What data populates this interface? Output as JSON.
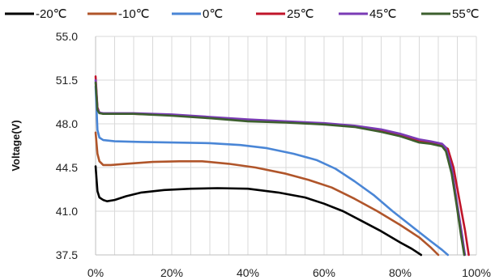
{
  "chart_data": {
    "type": "line",
    "title": "",
    "xlabel": "",
    "ylabel": "Voltage(V)",
    "xlim": [
      0,
      100
    ],
    "ylim": [
      37.5,
      55.0
    ],
    "x_ticks": [
      "0%",
      "20%",
      "40%",
      "60%",
      "80%",
      "100%"
    ],
    "x_tick_values": [
      0,
      20,
      40,
      60,
      80,
      100
    ],
    "y_ticks": [
      "55.0",
      "51.5",
      "48.0",
      "44.5",
      "41.0",
      "37.5"
    ],
    "y_tick_values": [
      55.0,
      51.5,
      48.0,
      44.5,
      41.0,
      37.5
    ],
    "grid": true,
    "legend_position": "top",
    "series": [
      {
        "name": "-20℃",
        "color": "#000000",
        "points": [
          [
            0,
            44.6
          ],
          [
            0.5,
            42.6
          ],
          [
            1,
            42.1
          ],
          [
            2,
            41.9
          ],
          [
            3,
            41.8
          ],
          [
            5,
            41.9
          ],
          [
            8,
            42.2
          ],
          [
            12,
            42.5
          ],
          [
            18,
            42.7
          ],
          [
            25,
            42.8
          ],
          [
            32,
            42.85
          ],
          [
            40,
            42.8
          ],
          [
            48,
            42.5
          ],
          [
            55,
            42.1
          ],
          [
            60,
            41.6
          ],
          [
            65,
            41.0
          ],
          [
            70,
            40.2
          ],
          [
            75,
            39.4
          ],
          [
            80,
            38.5
          ],
          [
            83,
            38.0
          ],
          [
            85.5,
            37.5
          ]
        ]
      },
      {
        "name": "-10℃",
        "color": "#b0552a",
        "points": [
          [
            0,
            47.3
          ],
          [
            0.5,
            45.6
          ],
          [
            1,
            45.0
          ],
          [
            2,
            44.7
          ],
          [
            4,
            44.7
          ],
          [
            8,
            44.8
          ],
          [
            15,
            44.95
          ],
          [
            22,
            45.0
          ],
          [
            28,
            45.0
          ],
          [
            35,
            44.8
          ],
          [
            42,
            44.5
          ],
          [
            50,
            44.0
          ],
          [
            56,
            43.5
          ],
          [
            62,
            42.9
          ],
          [
            68,
            42.0
          ],
          [
            74,
            41.0
          ],
          [
            80,
            39.9
          ],
          [
            85,
            38.9
          ],
          [
            88,
            38.1
          ],
          [
            90,
            37.5
          ]
        ]
      },
      {
        "name": "0℃",
        "color": "#4a86d6",
        "points": [
          [
            0,
            51.0
          ],
          [
            0.5,
            47.5
          ],
          [
            1,
            46.9
          ],
          [
            2,
            46.7
          ],
          [
            5,
            46.6
          ],
          [
            12,
            46.55
          ],
          [
            20,
            46.5
          ],
          [
            30,
            46.45
          ],
          [
            38,
            46.3
          ],
          [
            45,
            46.05
          ],
          [
            52,
            45.6
          ],
          [
            58,
            45.1
          ],
          [
            63,
            44.4
          ],
          [
            68,
            43.4
          ],
          [
            73,
            42.3
          ],
          [
            78,
            41.0
          ],
          [
            83,
            39.8
          ],
          [
            88,
            38.6
          ],
          [
            91,
            37.9
          ],
          [
            92.5,
            37.5
          ]
        ]
      },
      {
        "name": "25℃",
        "color": "#c0152a",
        "points": [
          [
            0,
            51.8
          ],
          [
            0.5,
            49.3
          ],
          [
            1,
            48.9
          ],
          [
            2,
            48.8
          ],
          [
            5,
            48.8
          ],
          [
            10,
            48.8
          ],
          [
            20,
            48.7
          ],
          [
            30,
            48.5
          ],
          [
            40,
            48.25
          ],
          [
            50,
            48.15
          ],
          [
            60,
            48.0
          ],
          [
            68,
            47.8
          ],
          [
            75,
            47.45
          ],
          [
            80,
            47.1
          ],
          [
            85,
            46.6
          ],
          [
            88,
            46.5
          ],
          [
            91,
            46.3
          ],
          [
            92.5,
            46.0
          ],
          [
            94,
            44.5
          ],
          [
            95.5,
            42.0
          ],
          [
            97,
            39.5
          ],
          [
            98,
            37.5
          ]
        ]
      },
      {
        "name": "45℃",
        "color": "#7a3bb5",
        "points": [
          [
            0,
            51.5
          ],
          [
            0.5,
            49.2
          ],
          [
            1,
            48.9
          ],
          [
            2,
            48.85
          ],
          [
            5,
            48.85
          ],
          [
            10,
            48.85
          ],
          [
            20,
            48.75
          ],
          [
            30,
            48.55
          ],
          [
            40,
            48.35
          ],
          [
            50,
            48.2
          ],
          [
            60,
            48.05
          ],
          [
            68,
            47.85
          ],
          [
            75,
            47.55
          ],
          [
            80,
            47.2
          ],
          [
            85,
            46.75
          ],
          [
            88,
            46.6
          ],
          [
            91,
            46.4
          ],
          [
            92,
            46.1
          ],
          [
            93.5,
            44.5
          ],
          [
            95,
            41.5
          ],
          [
            96.3,
            39.0
          ],
          [
            97,
            37.5
          ]
        ]
      },
      {
        "name": "55℃",
        "color": "#3d5f2e",
        "points": [
          [
            0,
            51.3
          ],
          [
            0.5,
            49.1
          ],
          [
            1,
            48.85
          ],
          [
            2,
            48.8
          ],
          [
            5,
            48.8
          ],
          [
            10,
            48.8
          ],
          [
            20,
            48.65
          ],
          [
            30,
            48.45
          ],
          [
            40,
            48.2
          ],
          [
            50,
            48.1
          ],
          [
            60,
            47.95
          ],
          [
            68,
            47.75
          ],
          [
            75,
            47.35
          ],
          [
            80,
            47.0
          ],
          [
            85,
            46.5
          ],
          [
            88,
            46.4
          ],
          [
            91,
            46.2
          ],
          [
            92,
            45.8
          ],
          [
            93.5,
            44.0
          ],
          [
            94.8,
            41.5
          ],
          [
            96,
            39.0
          ],
          [
            96.8,
            37.5
          ]
        ]
      }
    ]
  }
}
